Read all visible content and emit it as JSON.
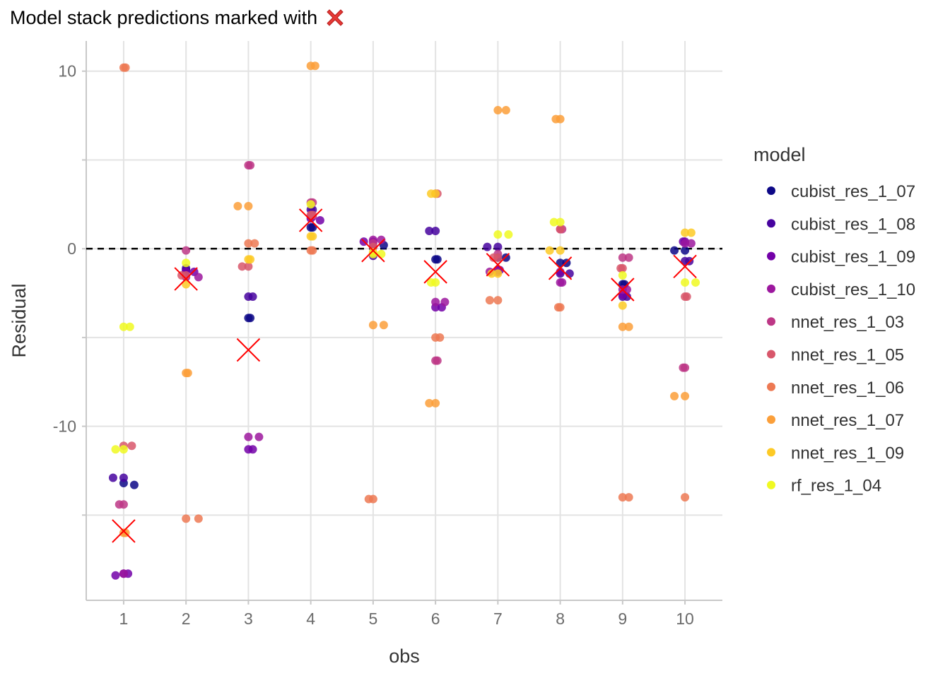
{
  "chart_data": {
    "type": "scatter",
    "title": "Model stack predictions marked with",
    "title_icon": "red-x-mark-icon",
    "xlabel": "obs",
    "ylabel": "Residual",
    "xlim": [
      0.4,
      10.6
    ],
    "ylim": [
      -19.8,
      11.7
    ],
    "x_ticks": [
      1,
      2,
      3,
      4,
      5,
      6,
      7,
      8,
      9,
      10
    ],
    "y_ticks": [
      -10,
      0,
      10
    ],
    "y_minor_ticks": [
      -15,
      -5,
      5
    ],
    "grid": true,
    "reference_line": {
      "y": 0,
      "style": "dashed",
      "color": "#000000"
    },
    "legend": {
      "title": "model",
      "position": "right"
    },
    "series": [
      {
        "name": "cubist_res_1_07",
        "color": "#0D0887",
        "points": [
          [
            1.0,
            -13.2
          ],
          [
            1.17,
            -13.3
          ],
          [
            2.0,
            -1.2
          ],
          [
            3.0,
            -3.9
          ],
          [
            3.03,
            -3.9
          ],
          [
            4.0,
            1.2
          ],
          [
            4.03,
            1.2
          ],
          [
            5.0,
            0.1
          ],
          [
            5.17,
            0.2
          ],
          [
            6.0,
            -0.6
          ],
          [
            6.03,
            -0.6
          ],
          [
            7.0,
            -0.5
          ],
          [
            7.13,
            -0.5
          ],
          [
            8.0,
            -0.8
          ],
          [
            8.1,
            -0.8
          ],
          [
            9.0,
            -2.0
          ],
          [
            9.03,
            -2.0
          ],
          [
            10.0,
            -0.1
          ],
          [
            9.83,
            -0.1
          ]
        ]
      },
      {
        "name": "cubist_res_1_08",
        "color": "#47039F",
        "points": [
          [
            0.83,
            -12.9
          ],
          [
            1.0,
            -12.9
          ],
          [
            2.0,
            -1.1
          ],
          [
            3.0,
            -2.7
          ],
          [
            3.07,
            -2.7
          ],
          [
            4.0,
            2.2
          ],
          [
            4.03,
            2.2
          ],
          [
            5.0,
            -0.4
          ],
          [
            6.0,
            1.0
          ],
          [
            5.9,
            1.0
          ],
          [
            7.0,
            0.1
          ],
          [
            6.83,
            0.1
          ],
          [
            8.0,
            -1.4
          ],
          [
            8.15,
            -1.4
          ],
          [
            9.0,
            -2.7
          ],
          [
            9.07,
            -2.7
          ],
          [
            10.0,
            -0.7
          ],
          [
            10.07,
            -0.7
          ]
        ]
      },
      {
        "name": "cubist_res_1_09",
        "color": "#7301A8",
        "points": [
          [
            0.87,
            -18.4
          ],
          [
            1.0,
            -18.3
          ],
          [
            1.07,
            -18.3
          ],
          [
            2.0,
            -1.3
          ],
          [
            2.13,
            -1.3
          ],
          [
            3.0,
            -11.3
          ],
          [
            3.07,
            -11.3
          ],
          [
            4.0,
            1.7
          ],
          [
            4.15,
            1.6
          ],
          [
            5.0,
            0.4
          ],
          [
            4.85,
            0.4
          ],
          [
            6.0,
            -3.3
          ],
          [
            6.1,
            -3.3
          ],
          [
            7.0,
            -1.2
          ],
          [
            7.03,
            -1.2
          ],
          [
            8.0,
            -1.3
          ],
          [
            9.0,
            -2.6
          ],
          [
            10.0,
            0.4
          ],
          [
            9.97,
            0.4
          ]
        ]
      },
      {
        "name": "cubist_res_1_10",
        "color": "#9C179E",
        "points": [
          [
            1.0,
            -18.3
          ],
          [
            2.0,
            -1.6
          ],
          [
            2.2,
            -1.6
          ],
          [
            3.0,
            -10.6
          ],
          [
            3.17,
            -10.6
          ],
          [
            4.0,
            1.8
          ],
          [
            4.03,
            1.8
          ],
          [
            5.0,
            0.5
          ],
          [
            5.13,
            0.5
          ],
          [
            6.0,
            -3.0
          ],
          [
            6.15,
            -3.0
          ],
          [
            7.0,
            -1.3
          ],
          [
            6.87,
            -1.3
          ],
          [
            8.0,
            -1.9
          ],
          [
            8.03,
            -1.9
          ],
          [
            9.0,
            -2.3
          ],
          [
            9.07,
            -2.3
          ],
          [
            10.0,
            0.3
          ],
          [
            10.1,
            0.3
          ]
        ]
      },
      {
        "name": "nnet_res_1_03",
        "color": "#BD3786",
        "points": [
          [
            0.93,
            -14.4
          ],
          [
            1.0,
            -14.4
          ],
          [
            2.0,
            -0.1
          ],
          [
            3.0,
            4.7
          ],
          [
            3.03,
            4.7
          ],
          [
            4.0,
            2.6
          ],
          [
            4.03,
            2.6
          ],
          [
            5.0,
            0.3
          ],
          [
            6.0,
            -6.3
          ],
          [
            6.03,
            -6.3
          ],
          [
            7.0,
            -0.3
          ],
          [
            8.0,
            1.1
          ],
          [
            8.03,
            1.1
          ],
          [
            9.0,
            -0.5
          ],
          [
            9.1,
            -0.5
          ],
          [
            10.0,
            -6.7
          ],
          [
            9.97,
            -6.7
          ]
        ]
      },
      {
        "name": "nnet_res_1_05",
        "color": "#D8576B",
        "points": [
          [
            1.0,
            -11.1
          ],
          [
            1.13,
            -11.1
          ],
          [
            2.0,
            -1.5
          ],
          [
            1.93,
            -1.5
          ],
          [
            3.0,
            -1.0
          ],
          [
            2.9,
            -1.0
          ],
          [
            4.0,
            1.9
          ],
          [
            4.03,
            1.9
          ],
          [
            5.0,
            0.1
          ],
          [
            6.0,
            3.1
          ],
          [
            6.03,
            3.1
          ],
          [
            7.0,
            -0.5
          ],
          [
            6.93,
            -0.5
          ],
          [
            8.0,
            1.1
          ],
          [
            9.0,
            -1.1
          ],
          [
            8.97,
            -1.1
          ],
          [
            10.0,
            -2.7
          ],
          [
            10.03,
            -2.7
          ]
        ]
      },
      {
        "name": "nnet_res_1_06",
        "color": "#ED7953",
        "points": [
          [
            1.0,
            10.2
          ],
          [
            1.03,
            10.2
          ],
          [
            2.0,
            -15.2
          ],
          [
            2.2,
            -15.2
          ],
          [
            3.0,
            0.3
          ],
          [
            3.1,
            0.3
          ],
          [
            4.0,
            -0.1
          ],
          [
            4.03,
            -0.1
          ],
          [
            5.0,
            -14.1
          ],
          [
            4.93,
            -14.1
          ],
          [
            6.0,
            -5.0
          ],
          [
            6.07,
            -5.0
          ],
          [
            7.0,
            -2.9
          ],
          [
            6.87,
            -2.9
          ],
          [
            8.0,
            -3.3
          ],
          [
            7.97,
            -3.3
          ],
          [
            9.0,
            -14.0
          ],
          [
            9.1,
            -14.0
          ],
          [
            10.0,
            -14.0
          ]
        ]
      },
      {
        "name": "nnet_res_1_07",
        "color": "#FB9F3A",
        "points": [
          [
            1.0,
            -16.0
          ],
          [
            1.03,
            -16.0
          ],
          [
            2.0,
            -7.0
          ],
          [
            2.03,
            -7.0
          ],
          [
            3.0,
            2.4
          ],
          [
            2.83,
            2.4
          ],
          [
            4.0,
            10.3
          ],
          [
            4.07,
            10.3
          ],
          [
            5.0,
            -4.3
          ],
          [
            5.17,
            -4.3
          ],
          [
            6.0,
            -8.7
          ],
          [
            5.9,
            -8.7
          ],
          [
            7.0,
            7.8
          ],
          [
            7.13,
            7.8
          ],
          [
            8.0,
            7.3
          ],
          [
            7.93,
            7.3
          ],
          [
            9.0,
            -4.4
          ],
          [
            9.1,
            -4.4
          ],
          [
            10.0,
            -8.3
          ],
          [
            9.83,
            -8.3
          ]
        ]
      },
      {
        "name": "nnet_res_1_09",
        "color": "#FDCA26",
        "points": [
          [
            2.0,
            -2.0
          ],
          [
            3.0,
            -0.6
          ],
          [
            3.03,
            -0.6
          ],
          [
            4.0,
            0.7
          ],
          [
            4.03,
            0.7
          ],
          [
            5.0,
            -0.2
          ],
          [
            6.0,
            3.1
          ],
          [
            5.93,
            3.1
          ],
          [
            7.0,
            -1.4
          ],
          [
            6.9,
            -1.4
          ],
          [
            8.0,
            -0.1
          ],
          [
            7.83,
            -0.1
          ],
          [
            9.0,
            -3.2
          ],
          [
            10.0,
            0.9
          ],
          [
            10.1,
            0.9
          ]
        ]
      },
      {
        "name": "rf_res_1_04",
        "color": "#F0F921",
        "points": [
          [
            1.0,
            -4.4
          ],
          [
            1.1,
            -4.4
          ],
          [
            0.87,
            -11.3
          ],
          [
            1.0,
            -11.3
          ],
          [
            2.0,
            -0.8
          ],
          [
            4.0,
            2.5
          ],
          [
            5.0,
            -0.3
          ],
          [
            5.13,
            -0.3
          ],
          [
            6.0,
            -1.9
          ],
          [
            5.93,
            -1.9
          ],
          [
            7.0,
            0.8
          ],
          [
            7.17,
            0.8
          ],
          [
            8.0,
            1.5
          ],
          [
            7.9,
            1.5
          ],
          [
            9.0,
            -1.5
          ],
          [
            10.0,
            -1.9
          ],
          [
            10.17,
            -1.9
          ]
        ]
      }
    ],
    "stack_predictions": {
      "marker": "x",
      "color": "#FF0000",
      "points": [
        [
          1,
          -15.9
        ],
        [
          2,
          -1.7
        ],
        [
          3,
          -5.7
        ],
        [
          4,
          1.6
        ],
        [
          5,
          -0.1
        ],
        [
          6,
          -1.3
        ],
        [
          7,
          -0.9
        ],
        [
          8,
          -1.1
        ],
        [
          9,
          -2.3
        ],
        [
          10,
          -1.0
        ]
      ]
    }
  }
}
